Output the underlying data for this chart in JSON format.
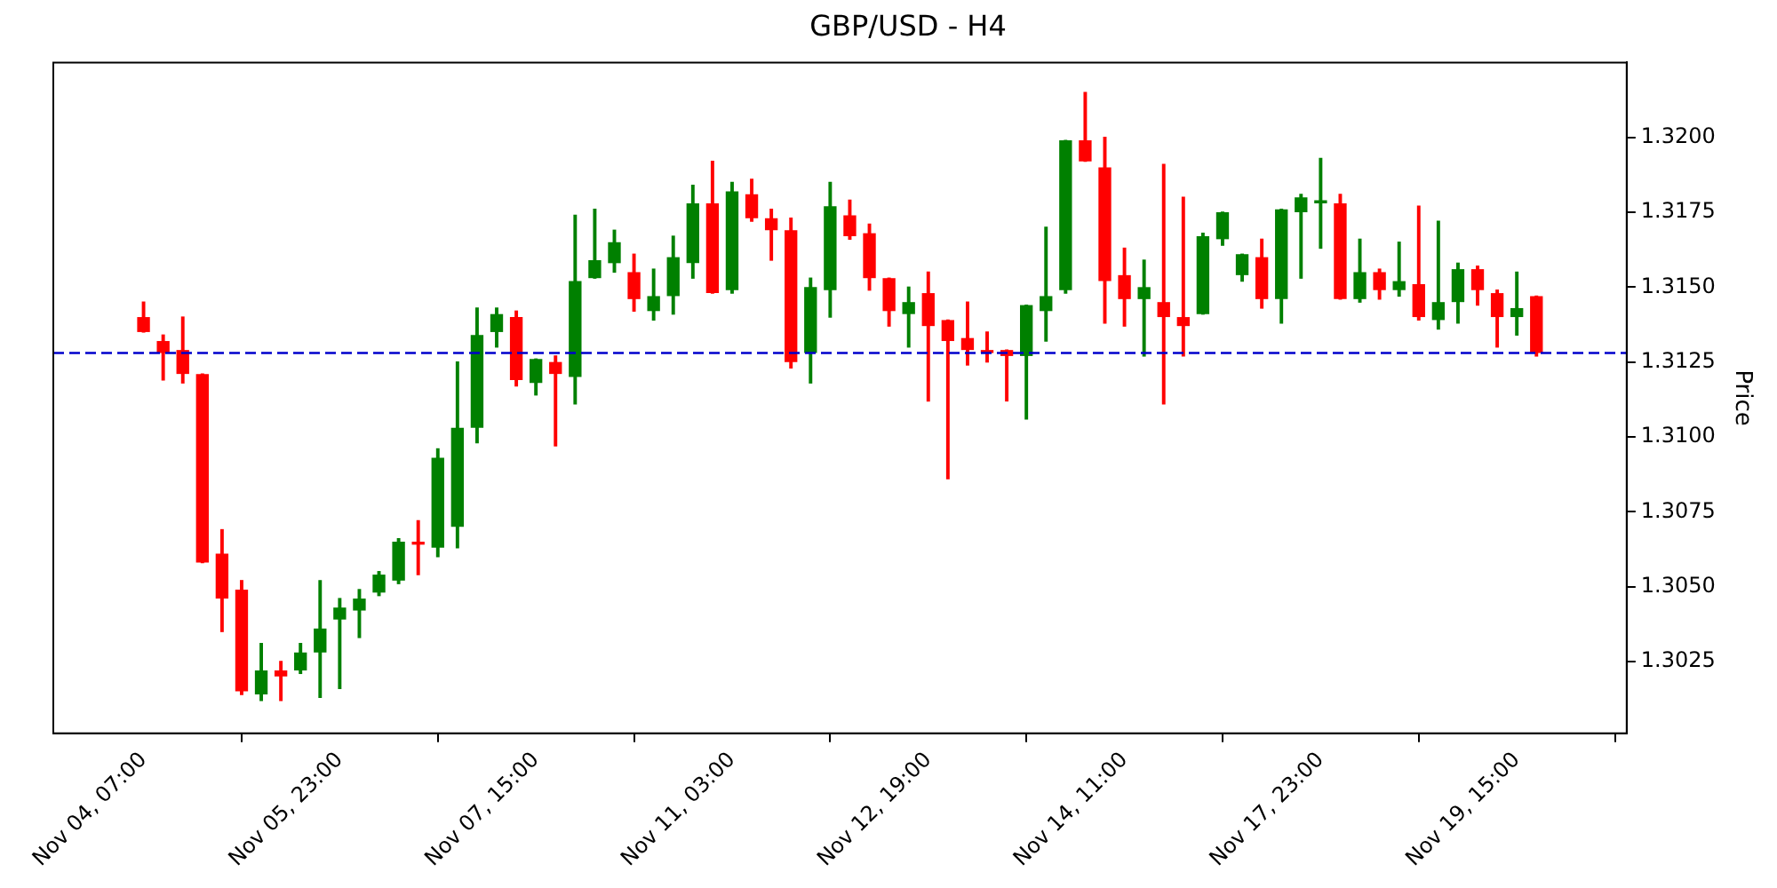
{
  "chart_data": {
    "type": "candlestick",
    "title": "GBP/USD - H4",
    "ylabel": "Price",
    "categories": [
      "Nov 04, 07:00",
      null,
      null,
      null,
      null,
      null,
      null,
      null,
      null,
      null,
      "Nov 05, 23:00",
      null,
      null,
      null,
      null,
      null,
      null,
      null,
      null,
      null,
      "Nov 07, 15:00",
      null,
      null,
      null,
      null,
      null,
      null,
      null,
      null,
      null,
      "Nov 11, 03:00",
      null,
      null,
      null,
      null,
      null,
      null,
      null,
      null,
      null,
      "Nov 12, 19:00",
      null,
      null,
      null,
      null,
      null,
      null,
      null,
      null,
      null,
      "Nov 14, 11:00",
      null,
      null,
      null,
      null,
      null,
      null,
      null,
      null,
      null,
      "Nov 17, 23:00",
      null,
      null,
      null,
      null,
      null,
      null,
      null,
      null,
      null,
      "Nov 19, 15:00",
      null
    ],
    "ohlc": [
      [
        1.314,
        1.3145,
        1.3135,
        1.3135
      ],
      [
        1.3132,
        1.3134,
        1.3119,
        1.3128
      ],
      [
        1.3129,
        1.314,
        1.3118,
        1.3121
      ],
      [
        1.3121,
        1.3121,
        1.3058,
        1.3058
      ],
      [
        1.3061,
        1.3069,
        1.3035,
        1.3046
      ],
      [
        1.3049,
        1.3052,
        1.3014,
        1.3015
      ],
      [
        1.3014,
        1.3031,
        1.3012,
        1.3022
      ],
      [
        1.3022,
        1.3025,
        1.3012,
        1.302
      ],
      [
        1.3022,
        1.3031,
        1.3021,
        1.3028
      ],
      [
        1.3028,
        1.3052,
        1.3013,
        1.3036
      ],
      [
        1.3039,
        1.3046,
        1.3016,
        1.3043
      ],
      [
        1.3042,
        1.3049,
        1.3033,
        1.3046
      ],
      [
        1.3048,
        1.3055,
        1.3047,
        1.3054
      ],
      [
        1.3052,
        1.3066,
        1.3051,
        1.3065
      ],
      [
        1.3065,
        1.3072,
        1.3054,
        1.3064
      ],
      [
        1.3063,
        1.3096,
        1.306,
        1.3093
      ],
      [
        1.307,
        1.3125,
        1.3063,
        1.3103
      ],
      [
        1.3103,
        1.3143,
        1.3098,
        1.3134
      ],
      [
        1.3135,
        1.3143,
        1.313,
        1.3141
      ],
      [
        1.314,
        1.3142,
        1.3117,
        1.3119
      ],
      [
        1.3118,
        1.3126,
        1.3114,
        1.3126
      ],
      [
        1.3125,
        1.3127,
        1.3097,
        1.3121
      ],
      [
        1.312,
        1.3174,
        1.3111,
        1.3152
      ],
      [
        1.3153,
        1.3176,
        1.3153,
        1.3159
      ],
      [
        1.3158,
        1.3169,
        1.3155,
        1.3165
      ],
      [
        1.3155,
        1.3161,
        1.3142,
        1.3146
      ],
      [
        1.3142,
        1.3156,
        1.3139,
        1.3147
      ],
      [
        1.3147,
        1.3167,
        1.3141,
        1.316
      ],
      [
        1.3158,
        1.3184,
        1.3153,
        1.3178
      ],
      [
        1.3178,
        1.3192,
        1.3148,
        1.3148
      ],
      [
        1.3149,
        1.3185,
        1.3148,
        1.3182
      ],
      [
        1.3181,
        1.3186,
        1.3172,
        1.3173
      ],
      [
        1.3173,
        1.3176,
        1.3159,
        1.3169
      ],
      [
        1.3169,
        1.3173,
        1.3123,
        1.3125
      ],
      [
        1.3128,
        1.3153,
        1.3118,
        1.315
      ],
      [
        1.3149,
        1.3185,
        1.314,
        1.3177
      ],
      [
        1.3174,
        1.3179,
        1.3166,
        1.3167
      ],
      [
        1.3168,
        1.3171,
        1.3149,
        1.3153
      ],
      [
        1.3153,
        1.3153,
        1.3137,
        1.3142
      ],
      [
        1.3141,
        1.315,
        1.313,
        1.3145
      ],
      [
        1.3148,
        1.3155,
        1.3112,
        1.3137
      ],
      [
        1.3139,
        1.3139,
        1.3086,
        1.3132
      ],
      [
        1.3133,
        1.3145,
        1.3124,
        1.3129
      ],
      [
        1.3129,
        1.3135,
        1.3125,
        1.3128
      ],
      [
        1.3129,
        1.3129,
        1.3112,
        1.3127
      ],
      [
        1.3127,
        1.3144,
        1.3106,
        1.3144
      ],
      [
        1.3142,
        1.317,
        1.3132,
        1.3147
      ],
      [
        1.3149,
        1.3199,
        1.3148,
        1.3199
      ],
      [
        1.3199,
        1.3215,
        1.3192,
        1.3192
      ],
      [
        1.319,
        1.32,
        1.3138,
        1.3152
      ],
      [
        1.3154,
        1.3163,
        1.3137,
        1.3146
      ],
      [
        1.3146,
        1.3159,
        1.3127,
        1.315
      ],
      [
        1.3145,
        1.3191,
        1.3111,
        1.314
      ],
      [
        1.314,
        1.318,
        1.3127,
        1.3137
      ],
      [
        1.3141,
        1.3168,
        1.3141,
        1.3167
      ],
      [
        1.3166,
        1.3175,
        1.3164,
        1.3175
      ],
      [
        1.3154,
        1.3161,
        1.3152,
        1.3161
      ],
      [
        1.316,
        1.3166,
        1.3143,
        1.3146
      ],
      [
        1.3146,
        1.3176,
        1.3138,
        1.3176
      ],
      [
        1.3175,
        1.3181,
        1.3153,
        1.318
      ],
      [
        1.3178,
        1.3193,
        1.3163,
        1.3179
      ],
      [
        1.3178,
        1.3181,
        1.3146,
        1.3146
      ],
      [
        1.3146,
        1.3166,
        1.3145,
        1.3155
      ],
      [
        1.3155,
        1.3156,
        1.3146,
        1.3149
      ],
      [
        1.3149,
        1.3165,
        1.3147,
        1.3152
      ],
      [
        1.3151,
        1.3177,
        1.3139,
        1.314
      ],
      [
        1.3139,
        1.3172,
        1.3136,
        1.3145
      ],
      [
        1.3145,
        1.3158,
        1.3138,
        1.3156
      ],
      [
        1.3156,
        1.3157,
        1.3144,
        1.3149
      ],
      [
        1.3148,
        1.3149,
        1.313,
        1.314
      ],
      [
        1.314,
        1.3155,
        1.3134,
        1.3143
      ],
      [
        1.3147,
        1.3147,
        1.3127,
        1.3128
      ]
    ],
    "colors": [
      "#ff0000",
      "#ff0000",
      "#ff0000",
      "#ff0000",
      "#ff0000",
      "#ff0000",
      "#008000",
      "#ff0000",
      "#008000",
      "#008000",
      "#008000",
      "#008000",
      "#008000",
      "#008000",
      "#ff0000",
      "#008000",
      "#008000",
      "#008000",
      "#008000",
      "#ff0000",
      "#008000",
      "#ff0000",
      "#008000",
      "#008000",
      "#008000",
      "#ff0000",
      "#008000",
      "#008000",
      "#008000",
      "#ff0000",
      "#008000",
      "#ff0000",
      "#ff0000",
      "#ff0000",
      "#008000",
      "#008000",
      "#ff0000",
      "#ff0000",
      "#ff0000",
      "#008000",
      "#ff0000",
      "#ff0000",
      "#ff0000",
      "#ff0000",
      "#ff0000",
      "#008000",
      "#008000",
      "#008000",
      "#ff0000",
      "#ff0000",
      "#ff0000",
      "#008000",
      "#ff0000",
      "#ff0000",
      "#008000",
      "#008000",
      "#008000",
      "#ff0000",
      "#008000",
      "#008000",
      "#008000",
      "#ff0000",
      "#008000",
      "#ff0000",
      "#008000",
      "#ff0000",
      "#008000",
      "#008000",
      "#ff0000",
      "#ff0000",
      "#008000",
      "#ff0000"
    ],
    "ylim": [
      1.3001,
      1.3225
    ],
    "yticks": [
      {
        "value": 1.3025,
        "label": "1.3025"
      },
      {
        "value": 1.305,
        "label": "1.3050"
      },
      {
        "value": 1.3075,
        "label": "1.3075"
      },
      {
        "value": 1.31,
        "label": "1.3100"
      },
      {
        "value": 1.3125,
        "label": "1.3125"
      },
      {
        "value": 1.315,
        "label": "1.3150"
      },
      {
        "value": 1.3175,
        "label": "1.3175"
      },
      {
        "value": 1.32,
        "label": "1.3200"
      }
    ],
    "ref_lines": [
      {
        "axis": "y",
        "value": 1.3128,
        "color": "#0000cc",
        "line_style": "dashed"
      }
    ],
    "grid": false,
    "legend": false
  }
}
